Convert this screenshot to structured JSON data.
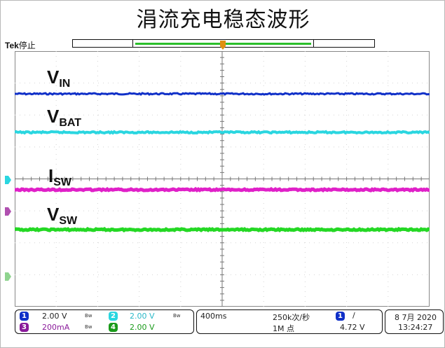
{
  "title": "涓流充电稳态波形",
  "header": {
    "brand": "Tek",
    "run_state": "停止"
  },
  "channels": [
    {
      "num": "1",
      "label": "V",
      "sub": "IN",
      "scale": "2.00 V",
      "color": "#1030c8"
    },
    {
      "num": "2",
      "label": "V",
      "sub": "BAT",
      "scale": "2.00 V",
      "color": "#2ad6e0"
    },
    {
      "num": "3",
      "label": "I",
      "sub": "SW",
      "scale": "200mA",
      "color": "#e020c8"
    },
    {
      "num": "4",
      "label": "V",
      "sub": "SW",
      "scale": "2.00 V",
      "color": "#24d824"
    }
  ],
  "marker_colors": {
    "ch2": "#2ad6e0",
    "ch3": "#b050b0",
    "ch4": "#8fd48f",
    "trigger": "#e09010"
  },
  "status": {
    "bw_icon": "Bw",
    "timebase": "400ms",
    "sample_rate": "250k次/秒",
    "record_length": "1M 点",
    "trigger_channel": "1",
    "trigger_slope": "/",
    "trigger_level": "4.72 V",
    "date": "8 7月 2020",
    "time": "13:24:27"
  }
}
